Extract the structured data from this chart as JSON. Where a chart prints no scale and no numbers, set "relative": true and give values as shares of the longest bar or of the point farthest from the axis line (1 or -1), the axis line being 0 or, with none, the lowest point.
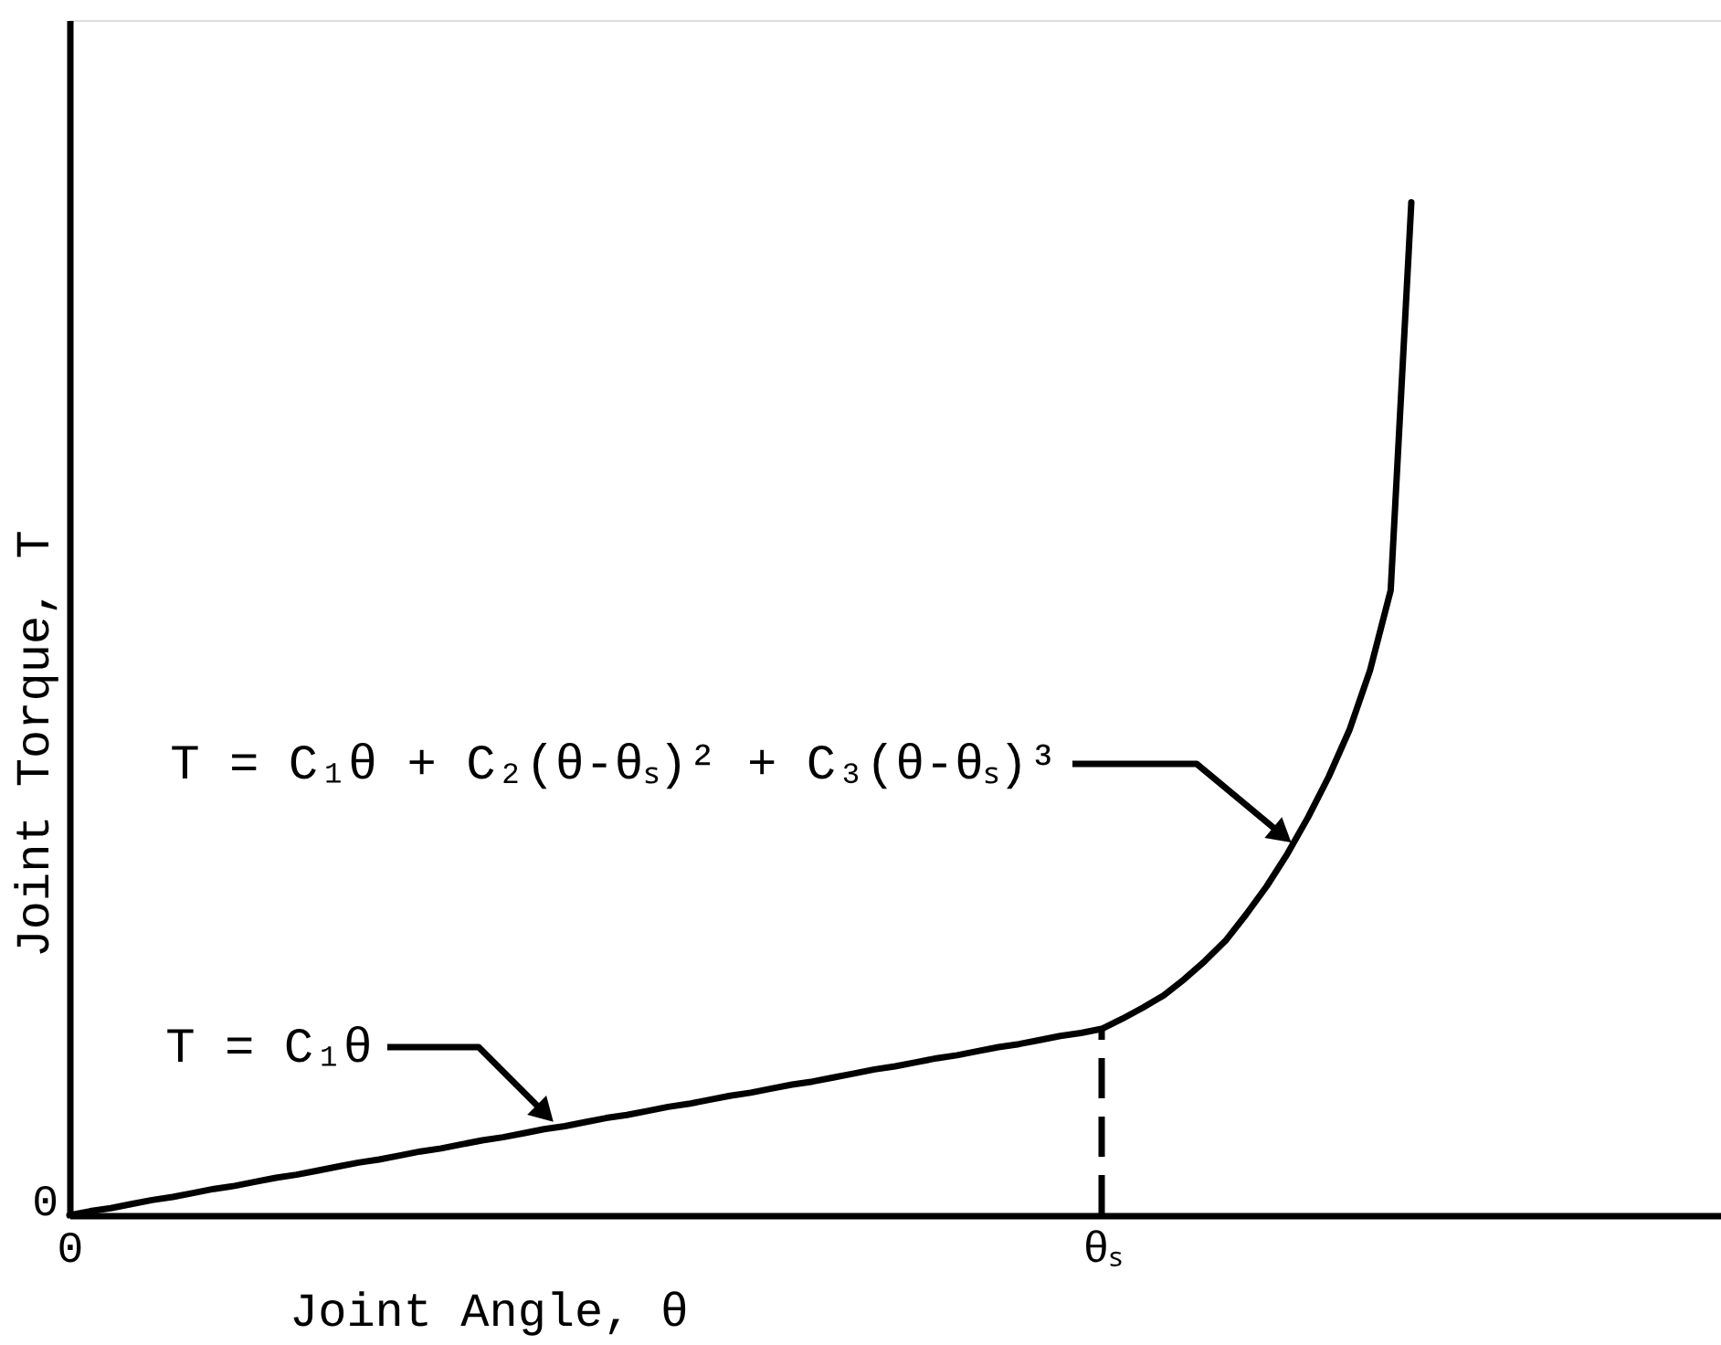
{
  "chart_data": {
    "type": "line",
    "relative": true,
    "xlabel": "Joint Angle, θ",
    "ylabel": "Joint Torque, T",
    "categories": [
      "0",
      null,
      null,
      null,
      null,
      null,
      null,
      null,
      null,
      null,
      null,
      null,
      null,
      null,
      null,
      null,
      null,
      null,
      null,
      null,
      null,
      null,
      null,
      null,
      null,
      null,
      null,
      null,
      null,
      null,
      null,
      null,
      null,
      null,
      null,
      null,
      null,
      null,
      null,
      null,
      null,
      null,
      null,
      null,
      null,
      null,
      null,
      null,
      null,
      null,
      "θₛ",
      null,
      null,
      null,
      null,
      null,
      null,
      null,
      null,
      null,
      null,
      null,
      null,
      null,
      null,
      null,
      null,
      null,
      null,
      null,
      null,
      null,
      null,
      null,
      null,
      null,
      null,
      null,
      null,
      null,
      null
    ],
    "series": [
      {
        "color": "#000000",
        "values": [
          0,
          0.004,
          0.007,
          0.011,
          0.015,
          0.018,
          0.022,
          0.026,
          0.029,
          0.033,
          0.037,
          0.04,
          0.044,
          0.048,
          0.052,
          0.055,
          0.059,
          0.063,
          0.066,
          0.07,
          0.074,
          0.077,
          0.081,
          0.085,
          0.088,
          0.092,
          0.096,
          0.099,
          0.103,
          0.107,
          0.11,
          0.114,
          0.118,
          0.121,
          0.125,
          0.129,
          0.132,
          0.136,
          0.14,
          0.144,
          0.147,
          0.151,
          0.155,
          0.158,
          0.162,
          0.166,
          0.169,
          0.173,
          0.177,
          0.18,
          0.184,
          0.194,
          0.205,
          0.217,
          0.233,
          0.251,
          0.271,
          0.297,
          0.325,
          0.357,
          0.393,
          0.433,
          0.479,
          0.538,
          0.617,
          1,
          null,
          null,
          null,
          null,
          null,
          null,
          null,
          null,
          null,
          null,
          null,
          null,
          null,
          null,
          null
        ]
      }
    ],
    "ref_lines": [
      {
        "axis": "x",
        "value": "θₛ",
        "line_style": "dashed",
        "color": "#000000"
      }
    ],
    "annotations": [
      "T = C₁θ + C₂(θ-θₛ)² + C₃(θ-θₛ)³",
      "T = C₁θ",
      {
        "text": "0",
        "x": "0",
        "y": 0
      }
    ]
  }
}
